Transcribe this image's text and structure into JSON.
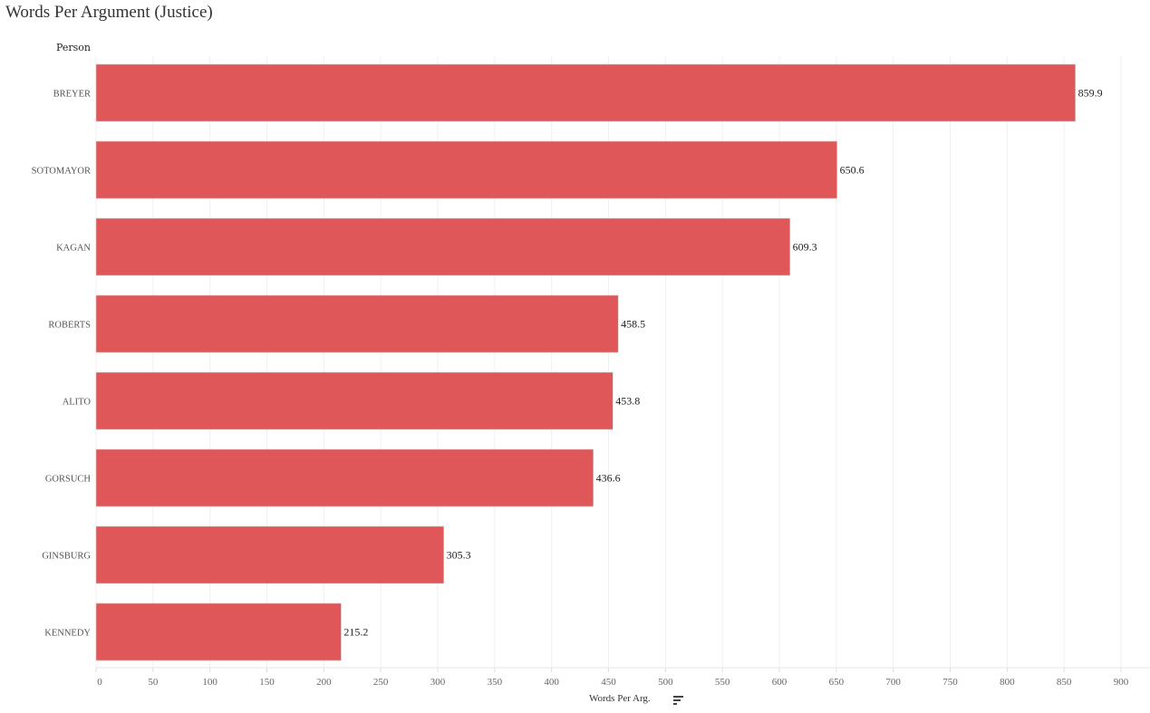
{
  "chart_data": {
    "type": "bar",
    "orientation": "horizontal",
    "title": "Words Per Argument (Justice)",
    "ylabel": "Person",
    "xlabel": "Words Per Arg.",
    "categories": [
      "BREYER",
      "SOTOMAYOR",
      "KAGAN",
      "ROBERTS",
      "ALITO",
      "GORSUCH",
      "GINSBURG",
      "KENNEDY"
    ],
    "values": [
      859.9,
      650.6,
      609.3,
      458.5,
      453.8,
      436.6,
      305.3,
      215.2
    ],
    "data_labels": [
      "859.9",
      "650.6",
      "609.3",
      "458.5",
      "453.8",
      "436.6",
      "305.3",
      "215.2"
    ],
    "xlim": [
      0,
      900
    ],
    "xticks": [
      0,
      50,
      100,
      150,
      200,
      250,
      300,
      350,
      400,
      450,
      500,
      550,
      600,
      650,
      700,
      750,
      800,
      850,
      900
    ],
    "grid": true,
    "bar_color": "#e05759",
    "sort_icon": "sort-descending-icon"
  }
}
